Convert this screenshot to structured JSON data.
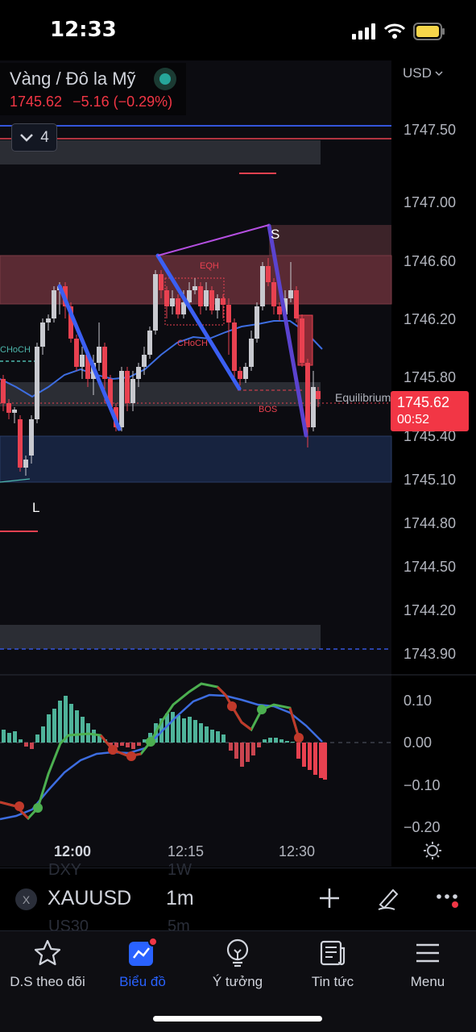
{
  "status": {
    "time": "12:33"
  },
  "legend": {
    "title": "Vàng / Đô la Mỹ",
    "price": "1745.62",
    "change": "−5.16 (−0.29%)"
  },
  "collapse": {
    "count": "4"
  },
  "currency": "USD",
  "price_axis": [
    "1747.50",
    "1747.00",
    "1746.60",
    "1746.20",
    "1745.80",
    "1745.40",
    "1745.10",
    "1744.80",
    "1744.50",
    "1744.20",
    "1743.90"
  ],
  "osc_axis": [
    "0.10",
    "0.00",
    "−0.10",
    "−0.20"
  ],
  "price_badge": {
    "price": "1745.62",
    "countdown": "00:52"
  },
  "annotations": {
    "eqh": "EQH",
    "choch1": "CHoCH",
    "choch2": "CHoCH",
    "bos": "BOS",
    "s": "S",
    "l": "L",
    "equilibrium": "Equilibrium"
  },
  "time_axis": [
    "12:00",
    "12:15",
    "12:30"
  ],
  "symbol_bar": {
    "symbol": "XAUUSD",
    "timeframe": "1m",
    "ghost_above_symbol": "DXY",
    "ghost_above_tf": "1W",
    "ghost_below_symbol": "US30",
    "ghost_below_tf": "5m",
    "close": "X"
  },
  "tabs": [
    {
      "label": "D.S theo dõi",
      "icon": "star-icon"
    },
    {
      "label": "Biểu đồ",
      "icon": "chart-icon",
      "active": true
    },
    {
      "label": "Ý tưởng",
      "icon": "lightbulb-icon"
    },
    {
      "label": "Tin tức",
      "icon": "news-icon"
    },
    {
      "label": "Menu",
      "icon": "menu-icon"
    }
  ],
  "colors": {
    "up": "#c8c9cf",
    "down": "#e84150",
    "supply": "#5a2a33",
    "demand": "#17233f",
    "accent": "#2962ff"
  }
}
